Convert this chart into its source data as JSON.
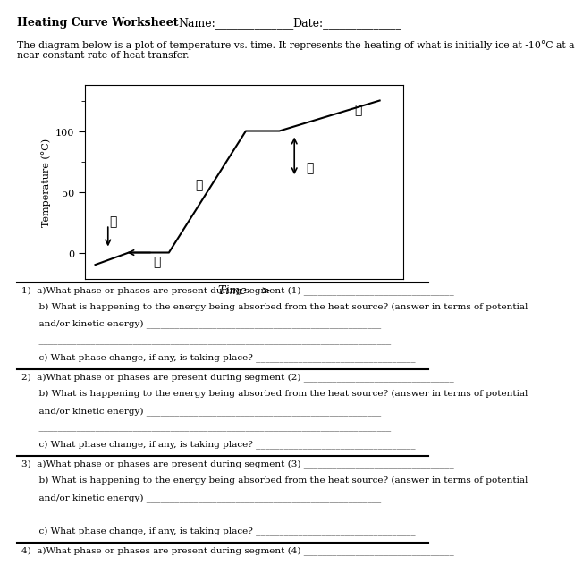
{
  "title_bold": "Heating Curve Worksheet",
  "name_field": "Name:______________",
  "date_field": "Date:______________",
  "description": "The diagram below is a plot of temperature vs. time. It represents the heating of what is initially ice at -10C at a near constant rate of heat transfer.",
  "graph_xlabel": "Time --->",
  "graph_ylabel": "Temperature (C)",
  "curve_x": [
    0.0,
    1.0,
    2.2,
    4.5,
    5.5,
    8.5
  ],
  "curve_y": [
    -10,
    0,
    0,
    100,
    100,
    125
  ],
  "yticks": [
    0,
    50,
    100
  ],
  "bg": "#ffffff",
  "questions": [
    {
      "sep": true,
      "text": "1)  a)What phase or phases are present during segment (1) ________________________________"
    },
    {
      "sep": false,
      "text": "      b) What is happening to the energy being absorbed from the heat source? (answer in terms of potential"
    },
    {
      "sep": false,
      "text": "      and/or kinetic energy) __________________________________________________"
    },
    {
      "sep": false,
      "text": "      ___________________________________________________________________________"
    },
    {
      "sep": false,
      "text": "      c) What phase change, if any, is taking place? __________________________________"
    },
    {
      "sep": true,
      "text": "2)  a)What phase or phases are present during segment (2) ________________________________"
    },
    {
      "sep": false,
      "text": "      b) What is happening to the energy being absorbed from the heat source? (answer in terms of potential"
    },
    {
      "sep": false,
      "text": "      and/or kinetic energy) __________________________________________________"
    },
    {
      "sep": false,
      "text": "      ___________________________________________________________________________"
    },
    {
      "sep": false,
      "text": "      c) What phase change, if any, is taking place? __________________________________"
    },
    {
      "sep": true,
      "text": "3)  a)What phase or phases are present during segment (3) ________________________________"
    },
    {
      "sep": false,
      "text": "      b) What is happening to the energy being absorbed from the heat source? (answer in terms of potential"
    },
    {
      "sep": false,
      "text": "      and/or kinetic energy) __________________________________________________"
    },
    {
      "sep": false,
      "text": "      ___________________________________________________________________________"
    },
    {
      "sep": false,
      "text": "      c) What phase change, if any, is taking place? __________________________________"
    },
    {
      "sep": true,
      "text": "4)  a)What phase or phases are present during segment (4) ________________________________"
    }
  ]
}
